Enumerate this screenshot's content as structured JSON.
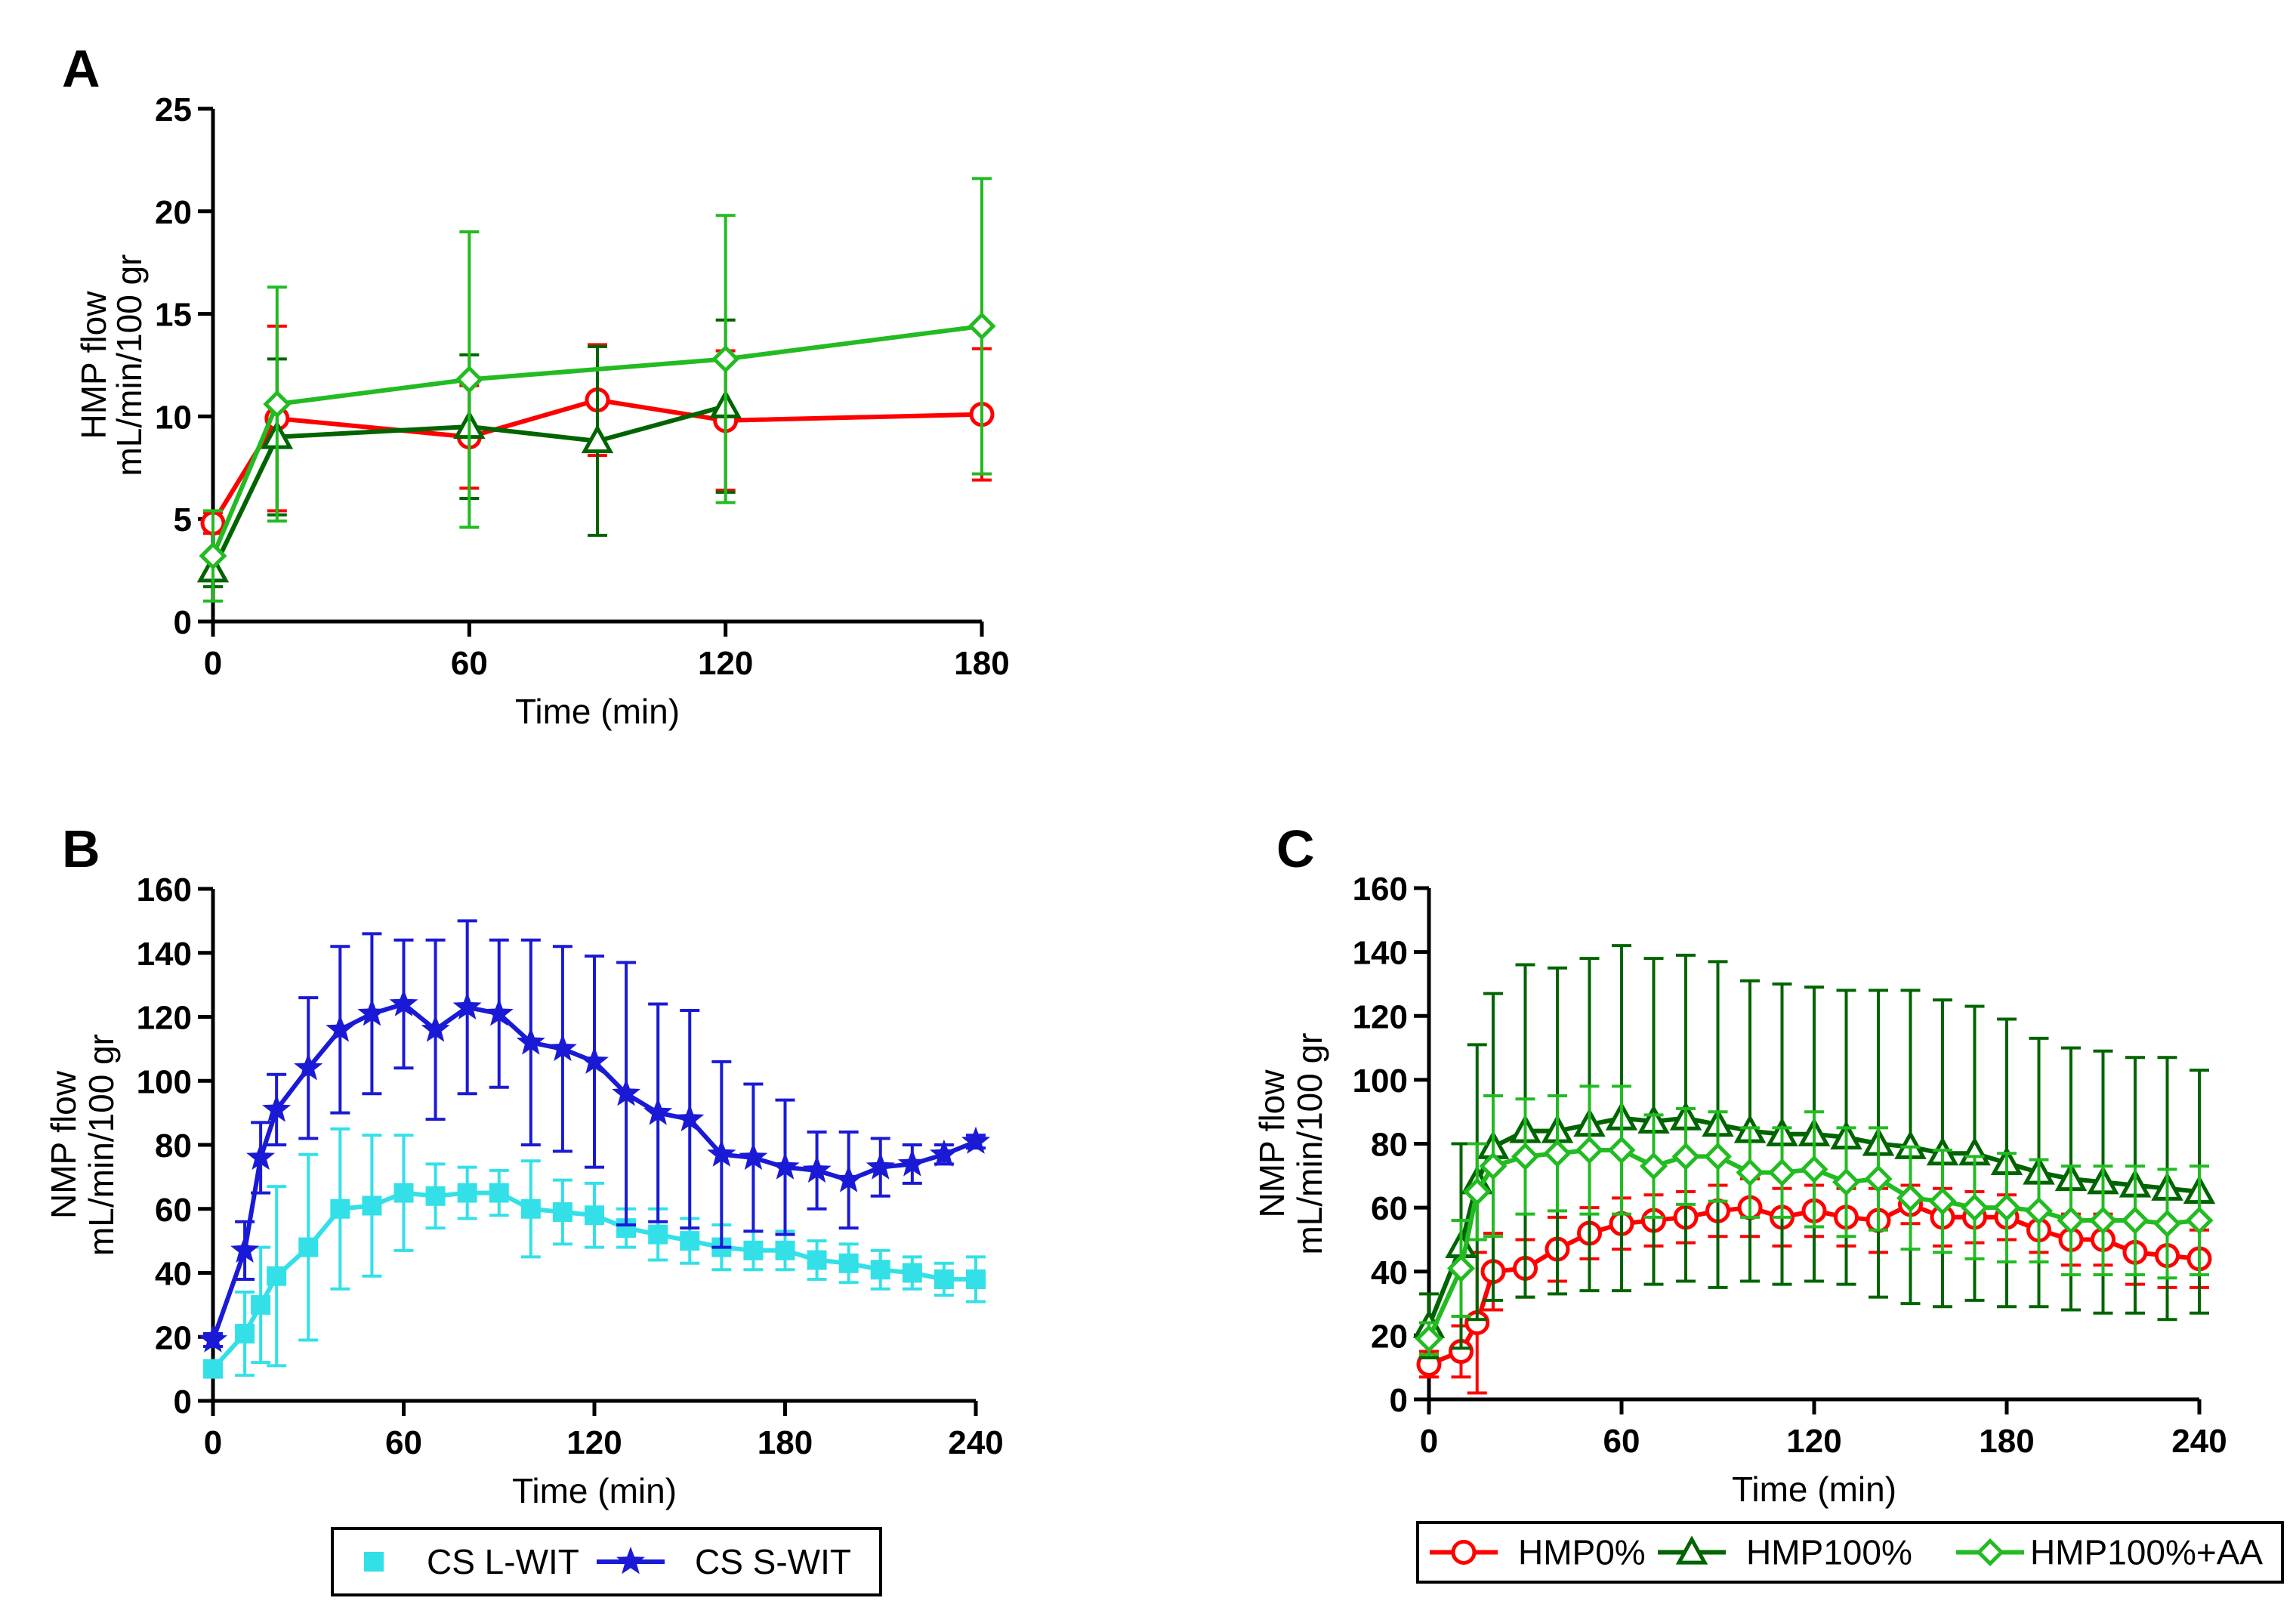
{
  "chart_data": [
    {
      "panel": "A",
      "type": "line",
      "xlabel": "Time (min)",
      "ylabel": [
        "HMP flow",
        "mL/min/100 gr"
      ],
      "xlim": [
        0,
        180
      ],
      "ylim": [
        0,
        25
      ],
      "xticks": [
        0,
        60,
        120,
        180
      ],
      "yticks": [
        0,
        5,
        10,
        15,
        20,
        25
      ],
      "grid": false,
      "series": [
        {
          "name": "HMP0%",
          "color": "#ff0000",
          "marker": "circle",
          "x": [
            0,
            15,
            60,
            90,
            120,
            180
          ],
          "y": [
            4.8,
            9.9,
            9.0,
            10.8,
            9.8,
            10.1
          ],
          "err": [
            0.5,
            4.5,
            2.5,
            2.7,
            3.4,
            3.2
          ]
        },
        {
          "name": "HMP100%",
          "color": "#006400",
          "marker": "triangle",
          "x": [
            0,
            15,
            60,
            90,
            120
          ],
          "y": [
            2.5,
            9.0,
            9.5,
            8.8,
            10.5
          ],
          "err": [
            0.8,
            3.8,
            3.5,
            4.6,
            4.2
          ]
        },
        {
          "name": "HMP100%+AA",
          "color": "#22bb22",
          "marker": "diamond",
          "x": [
            0,
            15,
            60,
            120,
            180
          ],
          "y": [
            3.2,
            10.6,
            11.8,
            12.8,
            14.4
          ],
          "err": [
            2.2,
            5.7,
            7.2,
            7.0,
            7.2
          ]
        }
      ]
    },
    {
      "panel": "B",
      "type": "line",
      "xlabel": "Time (min)",
      "ylabel": [
        "NMP flow",
        "mL/min/100 gr"
      ],
      "xlim": [
        0,
        240
      ],
      "ylim": [
        0,
        160
      ],
      "xticks": [
        0,
        60,
        120,
        180,
        240
      ],
      "yticks": [
        0,
        20,
        40,
        60,
        80,
        100,
        120,
        140,
        160
      ],
      "grid": false,
      "legend": {
        "position": "bottom",
        "entries": [
          "CS L-WIT",
          "CS S-WIT"
        ]
      },
      "series": [
        {
          "name": "CS L-WIT",
          "color": "#33e0e8",
          "marker": "square",
          "x": [
            0,
            10,
            15,
            20,
            30,
            40,
            50,
            60,
            70,
            80,
            90,
            100,
            110,
            120,
            130,
            140,
            150,
            160,
            170,
            180,
            190,
            200,
            210,
            220,
            230,
            240
          ],
          "y": [
            10,
            21,
            30,
            39,
            48,
            60,
            61,
            65,
            64,
            65,
            65,
            60,
            59,
            58,
            54,
            52,
            50,
            48,
            47,
            47,
            44,
            43,
            41,
            40,
            38,
            38
          ],
          "err": [
            2,
            13,
            18,
            28,
            29,
            25,
            22,
            18,
            10,
            8,
            7,
            15,
            10,
            10,
            6,
            8,
            7,
            7,
            6,
            6,
            6,
            6,
            6,
            5,
            5,
            7
          ]
        },
        {
          "name": "CS S-WIT",
          "color": "#1a1ad6",
          "marker": "star",
          "x": [
            0,
            10,
            15,
            20,
            30,
            40,
            50,
            60,
            70,
            80,
            90,
            100,
            110,
            120,
            130,
            140,
            150,
            160,
            170,
            180,
            190,
            200,
            210,
            220,
            230,
            240
          ],
          "y": [
            19,
            47,
            76,
            91,
            104,
            116,
            121,
            124,
            116,
            123,
            121,
            112,
            110,
            106,
            96,
            90,
            88,
            77,
            76,
            73,
            72,
            69,
            73,
            74,
            77,
            81
          ],
          "err": [
            2,
            9,
            11,
            11,
            22,
            26,
            25,
            20,
            28,
            27,
            23,
            32,
            32,
            33,
            41,
            34,
            34,
            29,
            23,
            21,
            12,
            15,
            9,
            6,
            3,
            2
          ]
        }
      ]
    },
    {
      "panel": "C",
      "type": "line",
      "xlabel": "Time (min)",
      "ylabel": [
        "NMP flow",
        "mL/min/100 gr"
      ],
      "xlim": [
        0,
        240
      ],
      "ylim": [
        0,
        160
      ],
      "xticks": [
        0,
        60,
        120,
        180,
        240
      ],
      "yticks": [
        0,
        20,
        40,
        60,
        80,
        100,
        120,
        140,
        160
      ],
      "grid": false,
      "legend": {
        "position": "bottom",
        "entries": [
          "HMP0%",
          "HMP100%",
          "HMP100%+AA"
        ]
      },
      "series": [
        {
          "name": "HMP0%",
          "color": "#ff0000",
          "marker": "circle",
          "x": [
            0,
            10,
            15,
            20,
            30,
            40,
            50,
            60,
            70,
            80,
            90,
            100,
            110,
            120,
            130,
            140,
            150,
            160,
            170,
            180,
            190,
            200,
            210,
            220,
            230,
            240
          ],
          "y": [
            11,
            15,
            24,
            40,
            41,
            47,
            52,
            55,
            56,
            57,
            59,
            60,
            57,
            59,
            57,
            56,
            61,
            57,
            57,
            57,
            53,
            50,
            50,
            46,
            45,
            44
          ],
          "err": [
            4,
            8,
            22,
            12,
            9,
            10,
            8,
            8,
            8,
            8,
            8,
            9,
            9,
            8,
            9,
            10,
            6,
            9,
            8,
            7,
            7,
            8,
            8,
            10,
            10,
            9
          ]
        },
        {
          "name": "HMP100%",
          "color": "#006400",
          "marker": "triangle",
          "x": [
            0,
            10,
            15,
            20,
            30,
            40,
            50,
            60,
            70,
            80,
            90,
            100,
            110,
            120,
            130,
            140,
            150,
            160,
            170,
            180,
            190,
            200,
            210,
            220,
            230,
            240
          ],
          "y": [
            23,
            48,
            68,
            79,
            84,
            84,
            86,
            88,
            87,
            88,
            86,
            84,
            83,
            83,
            82,
            80,
            79,
            77,
            77,
            74,
            71,
            69,
            68,
            67,
            66,
            65
          ],
          "err": [
            10,
            32,
            43,
            48,
            52,
            51,
            52,
            54,
            51,
            51,
            51,
            47,
            47,
            46,
            46,
            48,
            49,
            48,
            46,
            45,
            42,
            41,
            41,
            40,
            41,
            38
          ]
        },
        {
          "name": "HMP100%+AA",
          "color": "#22bb22",
          "marker": "diamond",
          "x": [
            0,
            10,
            15,
            20,
            30,
            40,
            50,
            60,
            70,
            80,
            90,
            100,
            110,
            120,
            130,
            140,
            150,
            160,
            170,
            180,
            190,
            200,
            210,
            220,
            230,
            240
          ],
          "y": [
            19,
            41,
            65,
            73,
            76,
            77,
            78,
            78,
            73,
            76,
            76,
            71,
            71,
            72,
            68,
            69,
            63,
            62,
            60,
            60,
            59,
            56,
            56,
            56,
            55,
            56
          ],
          "err": [
            5,
            15,
            15,
            22,
            18,
            18,
            20,
            20,
            16,
            15,
            14,
            14,
            14,
            18,
            17,
            16,
            16,
            16,
            16,
            17,
            16,
            17,
            17,
            17,
            17,
            17
          ]
        }
      ]
    }
  ]
}
